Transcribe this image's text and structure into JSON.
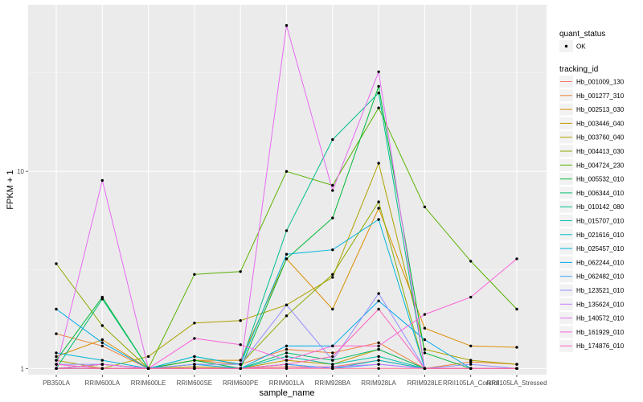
{
  "chart_data": {
    "type": "line",
    "xlabel": "sample_name",
    "ylabel": "FPKM + 1",
    "y_scale": "log10",
    "ylim": [
      0.93,
      70
    ],
    "y_ticks": [
      1,
      10
    ],
    "y_tick_labels": [
      "1",
      "10"
    ],
    "grid": true,
    "legend_position": "right",
    "categories": [
      "PB350LA",
      "RRIM600LA",
      "RRIM600LE",
      "RRIM600SE",
      "RRIM600PE",
      "RRIM901LA",
      "RRIM928BA",
      "RRIM928LA",
      "RRIM928LE",
      "RRII105LA_Control",
      "RRII105LA_Stressed"
    ],
    "point_legend": {
      "title": "quant_status",
      "items": [
        "OK"
      ]
    },
    "series": [
      {
        "name": "Hb_001009_130",
        "color": "#F8766D",
        "values": [
          1.0,
          1.0,
          1.0,
          1.0,
          1.0,
          1.02,
          1.02,
          1.1,
          1.0,
          1.0,
          1.0
        ]
      },
      {
        "name": "Hb_001277_310",
        "color": "#EC823C",
        "values": [
          1.5,
          1.3,
          1.0,
          1.1,
          1.05,
          1.25,
          1.2,
          1.35,
          1.0,
          1.08,
          1.05
        ]
      },
      {
        "name": "Hb_002513_030",
        "color": "#DB8E00",
        "values": [
          1.15,
          1.4,
          1.0,
          1.1,
          1.1,
          3.6,
          2.0,
          6.5,
          1.6,
          1.3,
          1.28
        ]
      },
      {
        "name": "Hb_003446_040",
        "color": "#C59900",
        "values": [
          1.0,
          1.05,
          1.0,
          1.02,
          1.0,
          1.1,
          1.05,
          1.25,
          1.0,
          1.0,
          1.0
        ]
      },
      {
        "name": "Hb_003760_040",
        "color": "#AEA200",
        "values": [
          1.1,
          1.0,
          1.15,
          1.7,
          1.75,
          2.1,
          2.9,
          11.0,
          1.25,
          1.1,
          1.05
        ]
      },
      {
        "name": "Hb_004413_030",
        "color": "#8CAB00",
        "values": [
          3.4,
          1.65,
          1.0,
          1.05,
          1.05,
          1.85,
          3.0,
          7.0,
          1.0,
          1.0,
          1.0
        ]
      },
      {
        "name": "Hb_004724_230",
        "color": "#59B300",
        "values": [
          1.0,
          1.05,
          1.0,
          3.0,
          3.1,
          10.0,
          8.5,
          21.0,
          6.6,
          3.5,
          2.0
        ]
      },
      {
        "name": "Hb_005532_010",
        "color": "#00BA38",
        "values": [
          1.1,
          2.3,
          1.0,
          1.1,
          1.0,
          3.6,
          5.8,
          27.0,
          1.2,
          1.0,
          1.0
        ]
      },
      {
        "name": "Hb_006344_010",
        "color": "#00BE6C",
        "values": [
          1.0,
          2.25,
          1.0,
          1.0,
          1.0,
          1.2,
          1.1,
          1.25,
          1.0,
          1.0,
          1.0
        ]
      },
      {
        "name": "Hb_010142_080",
        "color": "#00C08E",
        "values": [
          1.0,
          1.05,
          1.0,
          1.15,
          1.05,
          5.0,
          14.5,
          25.0,
          1.0,
          1.0,
          1.0
        ]
      },
      {
        "name": "Hb_015707_010",
        "color": "#00C0AB",
        "values": [
          1.0,
          1.0,
          1.0,
          1.0,
          1.0,
          1.15,
          1.05,
          1.15,
          1.0,
          1.0,
          1.0
        ]
      },
      {
        "name": "Hb_021616_010",
        "color": "#00BCC3",
        "values": [
          1.0,
          1.0,
          1.0,
          1.0,
          1.0,
          1.05,
          1.0,
          1.1,
          1.0,
          1.0,
          1.0
        ]
      },
      {
        "name": "Hb_025457_010",
        "color": "#00B6D8",
        "values": [
          1.2,
          1.1,
          1.0,
          1.15,
          1.05,
          3.8,
          4.0,
          5.7,
          1.0,
          1.0,
          1.0
        ]
      },
      {
        "name": "Hb_062244_010",
        "color": "#00ABEB",
        "values": [
          2.0,
          1.35,
          1.0,
          1.05,
          1.0,
          1.3,
          1.3,
          2.2,
          1.4,
          1.0,
          1.0
        ]
      },
      {
        "name": "Hb_062482_010",
        "color": "#3F9FFF",
        "values": [
          1.0,
          1.0,
          1.0,
          1.0,
          1.0,
          1.05,
          1.0,
          1.05,
          1.0,
          1.0,
          1.0
        ]
      },
      {
        "name": "Hb_123521_010",
        "color": "#9590FF",
        "values": [
          1.05,
          1.05,
          1.0,
          1.05,
          1.05,
          2.1,
          1.1,
          2.4,
          1.0,
          1.05,
          1.0
        ]
      },
      {
        "name": "Hb_135624_010",
        "color": "#C77CFF",
        "values": [
          1.0,
          1.0,
          1.0,
          1.0,
          1.0,
          1.0,
          1.02,
          1.05,
          1.0,
          1.0,
          1.0
        ]
      },
      {
        "name": "Hb_140572_010",
        "color": "#E76BF3",
        "values": [
          1.0,
          9.0,
          1.0,
          1.0,
          1.0,
          55.0,
          8.0,
          32.0,
          1.0,
          1.0,
          1.0
        ]
      },
      {
        "name": "Hb_161929_010",
        "color": "#FA62DB",
        "values": [
          1.0,
          1.05,
          1.0,
          1.42,
          1.32,
          1.1,
          1.3,
          1.3,
          1.88,
          2.3,
          3.6
        ]
      },
      {
        "name": "Hb_174876_010",
        "color": "#FF62BC",
        "values": [
          1.05,
          1.0,
          1.0,
          1.0,
          1.0,
          1.05,
          1.15,
          2.0,
          1.0,
          1.0,
          1.0
        ]
      },
      {
        "name": "",
        "color": "#FF6C91",
        "values": [
          1.0,
          1.0,
          1.0,
          1.0,
          1.0,
          1.0,
          1.0,
          1.0,
          1.0,
          1.0,
          1.0
        ]
      }
    ]
  }
}
